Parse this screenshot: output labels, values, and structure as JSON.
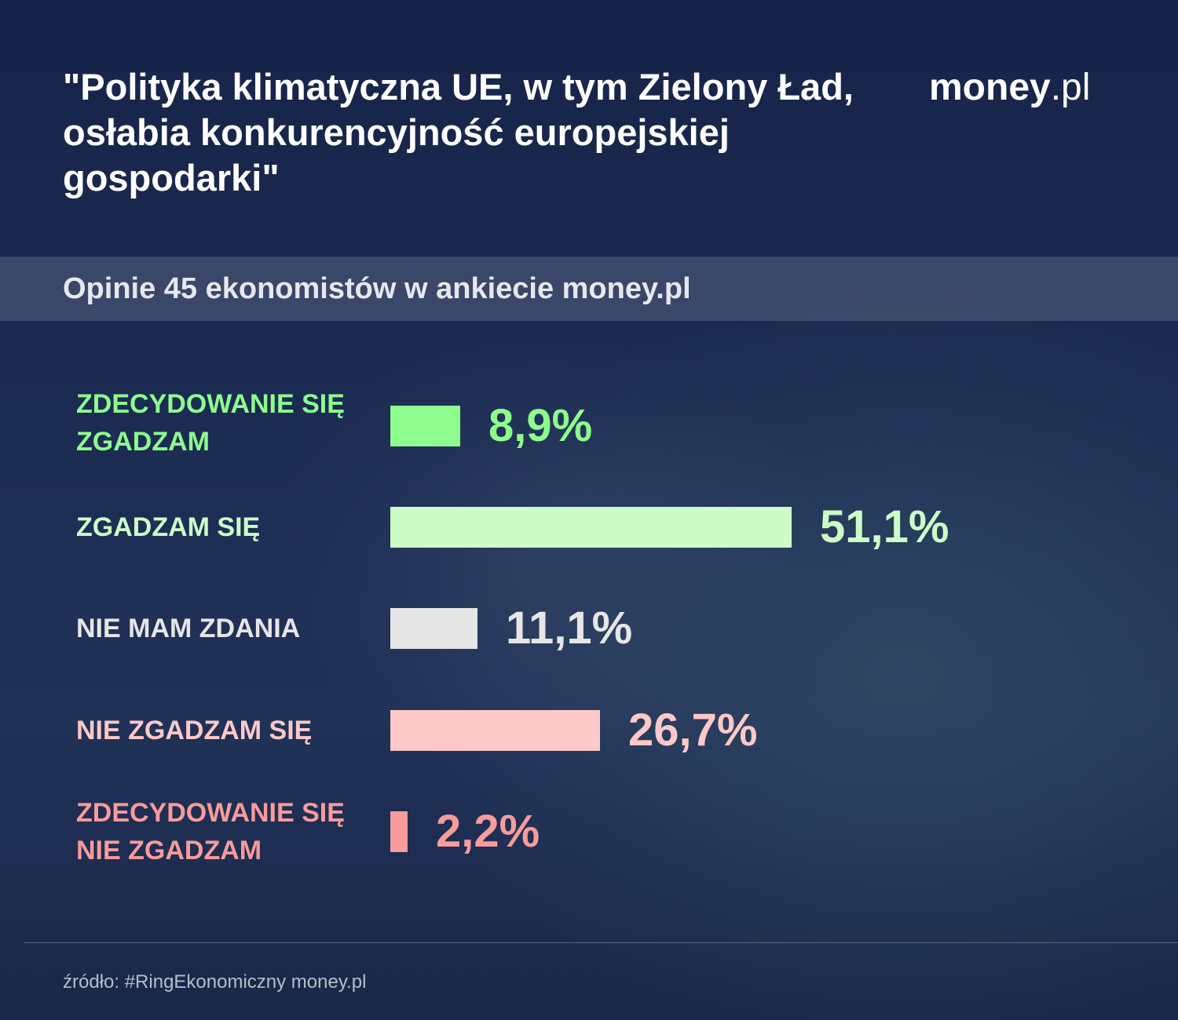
{
  "header": {
    "title": "\"Polityka klimatyczna UE, w tym Zielony Ład, osłabia konkurencyjność europejskiej gospodarki\"",
    "logo_word": "money",
    "logo_tld": ".pl",
    "subtitle": "Opinie 45 ekonomistów w ankiecie money.pl"
  },
  "chart_data": {
    "type": "bar",
    "orientation": "horizontal",
    "categories": [
      "ZDECYDOWANIE SIĘ ZGADZAM",
      "ZGADZAM SIĘ",
      "NIE MAM ZDANIA",
      "NIE ZGADZAM SIĘ",
      "ZDECYDOWANIE SIĘ NIE ZGADZAM"
    ],
    "values": [
      8.9,
      51.1,
      11.1,
      26.7,
      2.2
    ],
    "value_labels": [
      "8,9%",
      "51,1%",
      "11,1%",
      "26,7%",
      "2,2%"
    ],
    "colors": [
      "#8efb8e",
      "#cdfcc7",
      "#e6e6e6",
      "#fdc8c8",
      "#f79b9b"
    ],
    "label_colors": [
      "#8efb8e",
      "#cdfcc7",
      "#e6e6e6",
      "#fdc8c8",
      "#f79b9b"
    ],
    "xlim": [
      0,
      60
    ],
    "grid": false,
    "legend": "none"
  },
  "footer": {
    "source": "źródło: #RingEkonomiczny money.pl"
  }
}
